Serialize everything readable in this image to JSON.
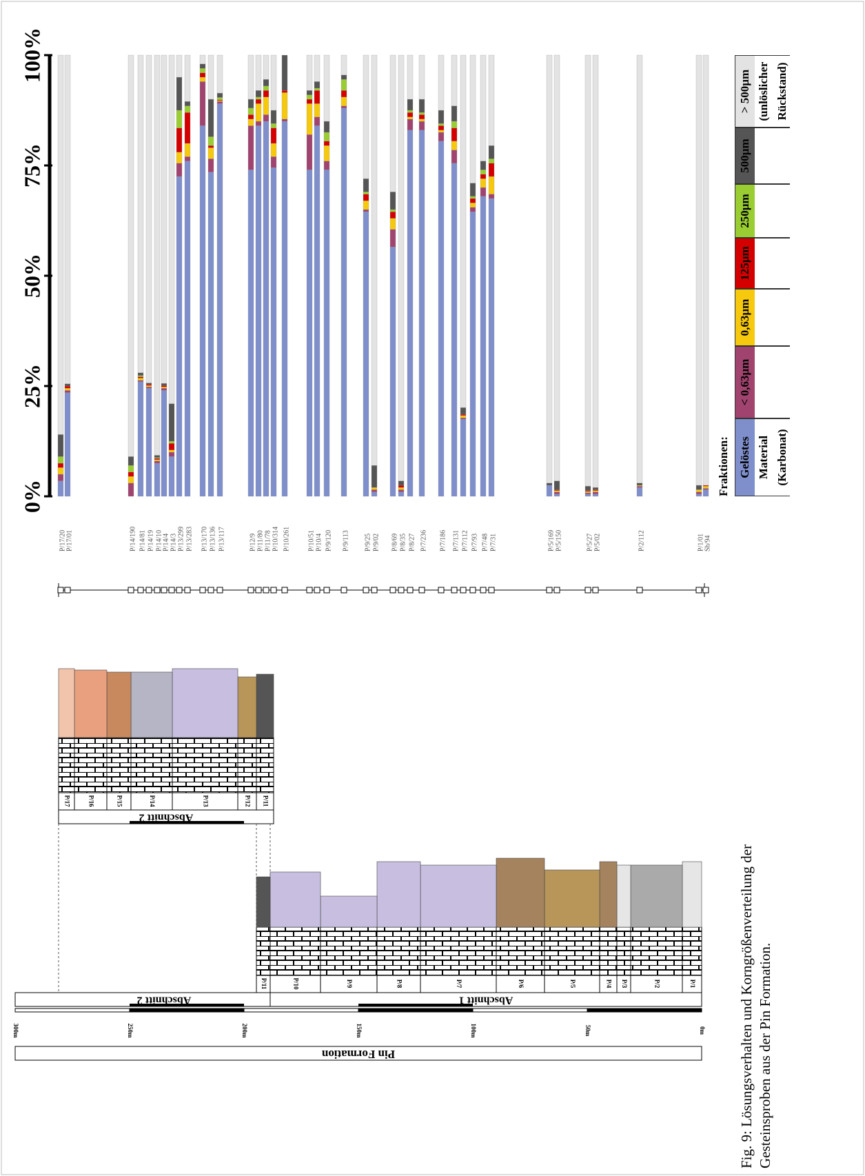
{
  "chart_data": {
    "type": "bar",
    "stacked": true,
    "categories": [
      "P/17/20",
      "P/17/01",
      "P/14/190",
      "P/14/81",
      "P/14/19",
      "P/14/10",
      "P/14/4",
      "P/14/3",
      "P/13/299",
      "P/13/283",
      "P/13/170",
      "P/13/136",
      "P/13/117",
      "P/12/9",
      "P/11/80",
      "P/11/78",
      "P/10/314",
      "P/10/261",
      "P/10/51",
      "P/10/4",
      "P/9/120",
      "P/9/113",
      "P/9/25",
      "P/9/02",
      "P/8/69",
      "P/8/35",
      "P/8/27",
      "P/7/236",
      "P/7/186",
      "P/7/131",
      "P/7/112",
      "P/7/93",
      "P/7/48",
      "P/7/31",
      "P/5/169",
      "P/5/150",
      "P/5/27",
      "P/5/02",
      "P/2/112",
      "P/1/01",
      "Sh/94"
    ],
    "series": [
      {
        "name": "Gelöstes Material (Karbonat)",
        "color": "#7f8fcc",
        "values": [
          3.5,
          23.5,
          0,
          26,
          24.5,
          7.5,
          24,
          9,
          72.5,
          76,
          84,
          73.5,
          89,
          74,
          84,
          85,
          74.5,
          85,
          74,
          84,
          74,
          88,
          64.5,
          1,
          56.5,
          1,
          83,
          83,
          80.5,
          75.5,
          17.5,
          64.5,
          68,
          67.5,
          2.5,
          0.5,
          0.5,
          0.5,
          2,
          0.5,
          1.5
        ]
      },
      {
        "name": "< 0,63µm",
        "color": "#a0446f",
        "values": [
          1.5,
          0.5,
          3,
          0.3,
          0.3,
          0.5,
          0.5,
          1,
          3,
          1,
          10,
          3,
          0.5,
          10,
          1,
          1.5,
          2.5,
          0.5,
          8,
          2,
          2,
          0.5,
          0.5,
          0.5,
          4,
          0.5,
          2.5,
          2,
          2,
          3,
          0.3,
          1,
          2,
          1,
          0,
          0.5,
          0.3,
          0.5,
          0.3,
          0.5,
          0.3
        ]
      },
      {
        "name": "0,63µm",
        "color": "#f6c90e",
        "values": [
          1.5,
          0.5,
          1.5,
          0.5,
          0.3,
          0.3,
          0.3,
          0.5,
          2.5,
          3,
          1,
          2.5,
          0.2,
          1.5,
          4,
          4,
          3,
          6,
          7,
          3,
          3.5,
          2,
          2,
          0.5,
          2.5,
          0.5,
          0.5,
          0.5,
          0.5,
          2,
          0.5,
          1,
          2,
          4,
          0,
          0.3,
          0.3,
          0.3,
          0.2,
          0.5,
          0.5
        ]
      },
      {
        "name": "125µm",
        "color": "#d40000",
        "values": [
          1,
          0.5,
          1,
          0.3,
          0.3,
          0.3,
          0.3,
          1.5,
          5.5,
          7,
          1,
          0.5,
          0.2,
          1,
          1,
          1.5,
          3.5,
          0.5,
          1,
          3,
          1,
          1.5,
          1.5,
          0,
          1.5,
          0.5,
          1,
          1,
          1,
          3,
          0.3,
          1,
          1,
          3,
          0,
          0.2,
          0.2,
          0.2,
          0,
          0,
          0.2
        ]
      },
      {
        "name": "250µm",
        "color": "#9acd32",
        "values": [
          1.5,
          0,
          1.5,
          0.3,
          0,
          0.2,
          0,
          0.5,
          4,
          1.5,
          1,
          2,
          0.5,
          1.5,
          0.5,
          1,
          1,
          0,
          1,
          0.5,
          2,
          2.5,
          0.5,
          0,
          0.5,
          0,
          0.5,
          0.5,
          0.5,
          1.5,
          0,
          0.5,
          1,
          1,
          0,
          0,
          0,
          0,
          0,
          0,
          0
        ]
      },
      {
        "name": "500µm",
        "color": "#555555",
        "values": [
          5,
          0.5,
          2,
          0.6,
          0.3,
          0.5,
          0.5,
          8.5,
          7.5,
          1,
          1,
          8.5,
          1,
          2,
          1.5,
          1.5,
          3,
          8,
          1,
          1.5,
          2.5,
          1,
          3,
          5,
          4,
          1,
          2.5,
          3,
          3,
          3.5,
          1.5,
          3,
          2,
          3,
          0.5,
          2,
          1,
          0.5,
          0.5,
          1,
          0
        ]
      },
      {
        "name": "> 500µm (unlöslicher Rückstand)",
        "color": "#e3e3e3",
        "values": [
          86,
          74.5,
          91,
          72,
          74.3,
          90.7,
          74.4,
          79,
          5,
          10.5,
          2,
          10,
          8.6,
          10,
          8,
          5.5,
          12.5,
          0,
          8,
          6,
          15,
          4.5,
          28,
          93,
          31,
          96.5,
          10,
          10,
          12.5,
          11.5,
          79.9,
          29,
          24,
          20.5,
          97,
          96.5,
          97.7,
          98,
          97,
          97.5,
          97.5
        ]
      }
    ],
    "ylim": [
      0,
      100
    ],
    "yticks": [
      {
        "value": 0,
        "label": "0%"
      },
      {
        "value": 25,
        "label": "25%"
      },
      {
        "value": 50,
        "label": "50%"
      },
      {
        "value": 75,
        "label": "75%"
      },
      {
        "value": 100,
        "label": "100%"
      }
    ],
    "legend_title": "Fraktionen:"
  },
  "stratigraphy": {
    "formation": "Pin Formation",
    "scale": [
      "0m",
      "50m",
      "100m",
      "150m",
      "200m",
      "250m",
      "300m"
    ],
    "sections": [
      "Abschnitt 1",
      "Abschnitt 2"
    ],
    "lower_units": [
      "P/1",
      "P/2",
      "P/3",
      "P/4",
      "P/5",
      "P/6",
      "P/7",
      "P/8",
      "P/9",
      "P/10",
      "P/11"
    ],
    "upper_units": [
      "P/11",
      "P/12",
      "P/13",
      "P/14",
      "P/15",
      "P/16",
      "P/17"
    ]
  },
  "caption": [
    "Fig. 9: Lösungsverhalten und Korngrößenverteilung der",
    "Gesteinsproben aus der Pin Formation."
  ]
}
